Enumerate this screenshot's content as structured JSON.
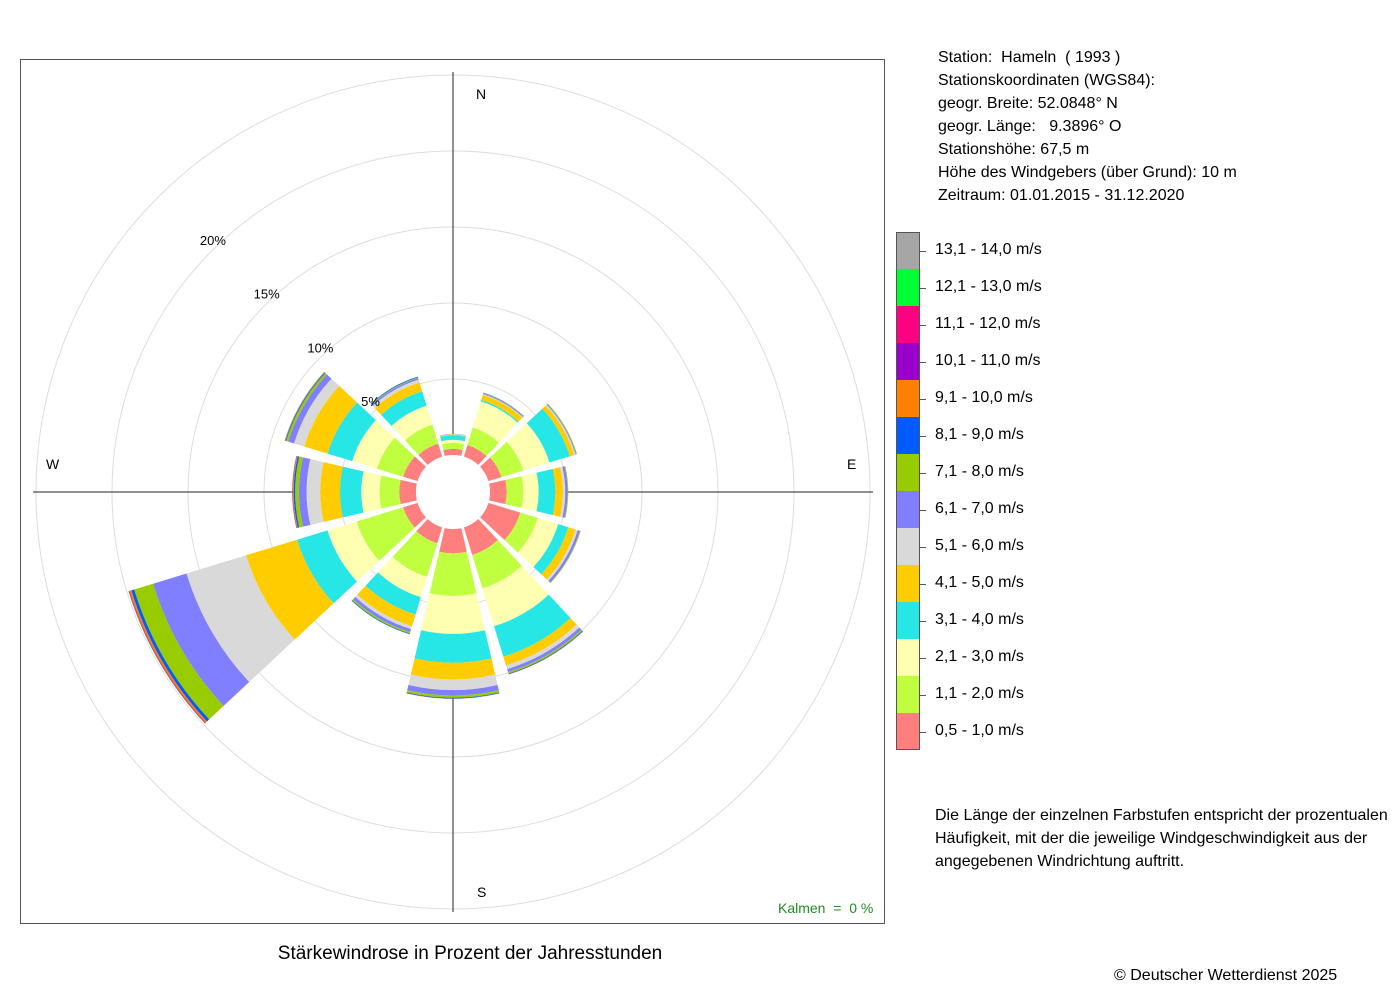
{
  "station_info": {
    "station": "Station:  Hameln  ( 1993 )",
    "coords_header": "Stationskoordinaten (WGS84):",
    "latitude": "geogr. Breite: 52.0848° N",
    "longitude": "geogr. Länge:   9.3896° O",
    "altitude": "Stationshöhe: 67,5 m",
    "sensor_height": "Höhe des Windgebers (über Grund): 10 m",
    "period": "Zeitraum: 01.01.2015 - 31.12.2020"
  },
  "note": "Die Länge der einzelnen Farbstufen entspricht der prozentualen Häufigkeit, mit der die jeweilige Windgeschwindigkeit aus der angegebenen Windrichtung auftritt.",
  "calm_label": "Kalmen  =  0 %",
  "copyright": "© Deutscher Wetterdienst  2025",
  "chart_data": {
    "type": "wind-rose",
    "title": "Stärkewindrose in Prozent der Jahresstunden",
    "radial_unit": "%",
    "radial_ticks": [
      5,
      10,
      15,
      20
    ],
    "radial_tick_labels": [
      "5%",
      "10%",
      "15%",
      "20%"
    ],
    "direction_labels": {
      "N": "N",
      "E": "E",
      "S": "S",
      "W": "W"
    },
    "directions_deg": [
      0,
      30,
      60,
      90,
      120,
      150,
      180,
      210,
      240,
      270,
      300,
      330
    ],
    "speed_classes": [
      {
        "label": "0,5 - 1,0 m/s",
        "color": "#ff7f7f"
      },
      {
        "label": "1,1 - 2,0 m/s",
        "color": "#bfff3f"
      },
      {
        "label": "2,1 - 3,0 m/s",
        "color": "#ffffb2"
      },
      {
        "label": "3,1 - 4,0 m/s",
        "color": "#27e6e6"
      },
      {
        "label": "4,1 - 5,0 m/s",
        "color": "#ffcc00"
      },
      {
        "label": "5,1 - 6,0 m/s",
        "color": "#d9d9d9"
      },
      {
        "label": "6,1 - 7,0 m/s",
        "color": "#7f7fff"
      },
      {
        "label": "7,1 - 8,0 m/s",
        "color": "#99cc00"
      },
      {
        "label": "8,1 - 9,0 m/s",
        "color": "#005cff"
      },
      {
        "label": "9,1 - 10,0 m/s",
        "color": "#ff8000"
      },
      {
        "label": "10,1 - 11,0 m/s",
        "color": "#9900cc"
      },
      {
        "label": "11,1 - 12,0 m/s",
        "color": "#ff0080"
      },
      {
        "label": "12,1 - 13,0 m/s",
        "color": "#00ff33"
      },
      {
        "label": "13,1 - 14,0 m/s",
        "color": "#a6a6a6"
      }
    ],
    "cumulative_percent": [
      [
        0.4,
        0.8,
        1.0,
        1.3,
        1.35,
        1.38,
        1.4,
        1.4,
        1.4,
        1.4,
        1.4,
        1.4,
        1.4,
        1.4
      ],
      [
        0.8,
        2.0,
        3.8,
        3.9,
        4.25,
        4.3,
        4.35,
        4.38,
        4.4,
        4.4,
        4.4,
        4.4,
        4.4,
        4.4
      ],
      [
        0.9,
        2.4,
        4.2,
        5.6,
        5.9,
        6.0,
        6.05,
        6.1,
        6.1,
        6.1,
        6.1,
        6.1,
        6.1,
        6.1
      ],
      [
        1.1,
        2.2,
        3.2,
        4.3,
        4.8,
        4.95,
        5.1,
        5.15,
        5.15,
        5.15,
        5.15,
        5.15,
        5.15,
        5.15
      ],
      [
        2.2,
        3.4,
        4.8,
        5.5,
        6.0,
        6.15,
        6.3,
        6.35,
        6.35,
        6.35,
        6.35,
        6.35,
        6.35,
        6.35
      ],
      [
        1.9,
        4.2,
        6.8,
        8.9,
        9.5,
        9.75,
        9.95,
        10.05,
        10.1,
        10.12,
        10.12,
        10.12,
        10.12,
        10.12
      ],
      [
        1.6,
        4.4,
        6.9,
        8.8,
        9.9,
        10.6,
        10.95,
        11.1,
        11.15,
        11.17,
        11.17,
        11.17,
        11.17,
        11.17
      ],
      [
        1.1,
        3.4,
        4.8,
        6.0,
        6.8,
        7.0,
        7.2,
        7.3,
        7.35,
        7.35,
        7.35,
        7.35,
        7.35,
        7.35
      ],
      [
        1.0,
        4.2,
        6.2,
        8.3,
        11.8,
        15.9,
        18.2,
        19.5,
        19.7,
        19.82,
        19.85,
        19.88,
        19.9,
        19.9
      ],
      [
        1.1,
        2.4,
        3.6,
        5.0,
        6.3,
        7.2,
        7.7,
        7.95,
        8.05,
        8.1,
        8.12,
        8.14,
        8.15,
        8.15
      ],
      [
        1.0,
        2.8,
        4.5,
        6.2,
        7.8,
        8.5,
        8.9,
        9.05,
        9.1,
        9.12,
        9.13,
        9.14,
        9.15,
        9.15
      ],
      [
        0.9,
        2.2,
        3.5,
        4.5,
        5.1,
        5.3,
        5.4,
        5.45,
        5.5,
        5.5,
        5.5,
        5.5,
        5.5,
        5.5
      ]
    ]
  }
}
